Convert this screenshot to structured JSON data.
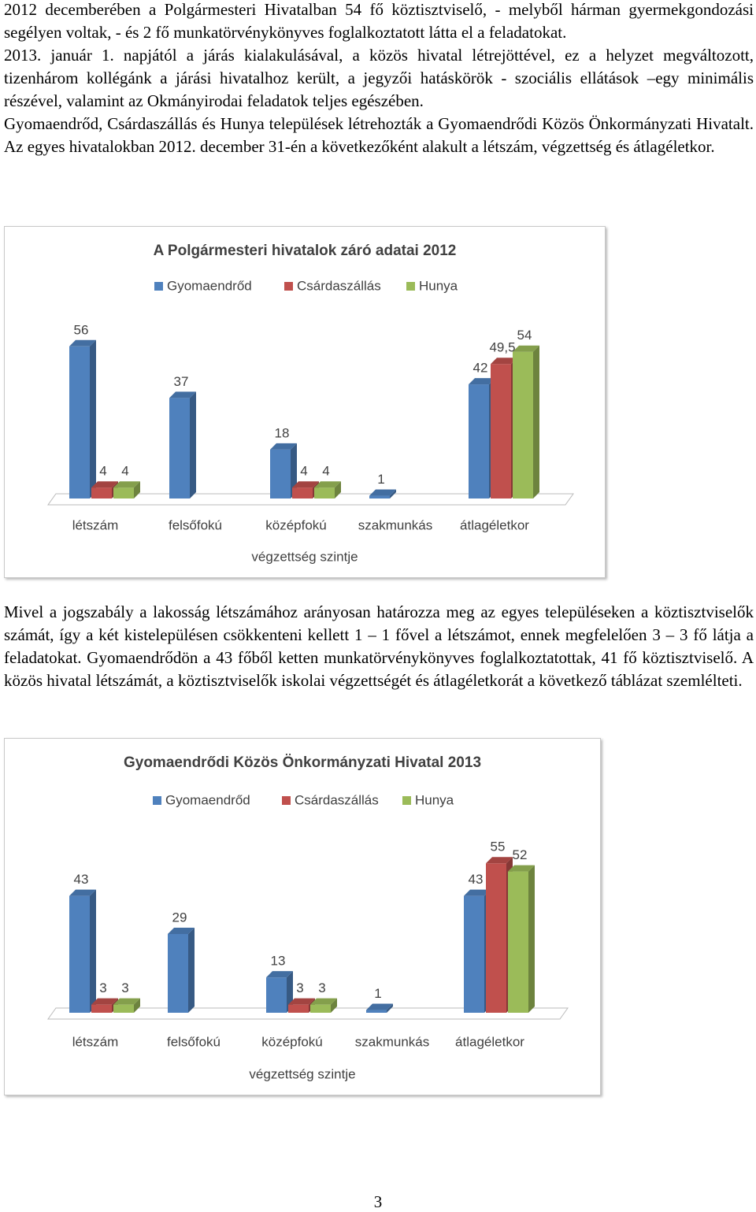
{
  "paragraphs": [
    "2012 decemberében a Polgármesteri Hivatalban 54 fő köztisztviselő, - melyből hárman gyermekgondozási segélyen voltak, - és 2 fő munkatörvénykönyves foglalkoztatott látta el a feladatokat.",
    "2013. január 1. napjától a járás kialakulásával, a közös hivatal létrejöttével, ez a helyzet megváltozott, tizenhárom kollégánk a járási hivatalhoz került, a jegyzői hatáskörök - szociális ellátások –egy minimális részével, valamint az Okmányirodai feladatok teljes egészében.",
    "Gyomaendrőd, Csárdaszállás és Hunya települések létrehozták a Gyomaendrődi Közös Önkormányzati Hivatalt. Az egyes hivatalokban 2012. december 31-én a következőként alakult a létszám, végzettség és átlagéletkor.",
    "Mivel a jogszabály a lakosság létszámához arányosan határozza meg az egyes településeken a köztisztviselők számát, így a két kistelepülésen csökkenteni kellett 1 – 1 fővel a létszámot, ennek megfelelően 3 – 3 fő látja a feladatokat. Gyomaendrődön a 43 főből ketten munkatörvénykönyves foglalkoztatottak, 41 fő köztisztviselő. A közös hivatal létszámát, a köztisztviselők iskolai végzettségét és átlagéletkorát a következő táblázat szemlélteti."
  ],
  "chart_data": [
    {
      "type": "bar",
      "title": "A Polgármesteri hivatalok záró adatai 2012",
      "x_label": "végzettség szintje",
      "categories": [
        "létszám",
        "felsőfokú",
        "középfokú",
        "szakmunkás",
        "átlagéletkor"
      ],
      "series": [
        {
          "name": "Gyomaendrőd",
          "color": "#4f81bd",
          "values": [
            56,
            37,
            18,
            1,
            42
          ]
        },
        {
          "name": "Csárdaszállás",
          "color": "#c0504d",
          "values": [
            4,
            null,
            4,
            null,
            49.5
          ],
          "value_labels": [
            "4",
            null,
            "4",
            null,
            "49,5"
          ]
        },
        {
          "name": "Hunya",
          "color": "#9bbb59",
          "values": [
            4,
            null,
            4,
            null,
            54
          ]
        }
      ],
      "legend": "top"
    },
    {
      "type": "bar",
      "title": "Gyomaendrődi Közös Önkormányzati Hivatal 2013",
      "x_label": "végzettség szintje",
      "categories": [
        "létszám",
        "felsőfokú",
        "középfokú",
        "szakmunkás",
        "átlagéletkor"
      ],
      "series": [
        {
          "name": "Gyomaendrőd",
          "color": "#4f81bd",
          "values": [
            43,
            29,
            13,
            1,
            43
          ]
        },
        {
          "name": "Csárdaszállás",
          "color": "#c0504d",
          "values": [
            3,
            null,
            3,
            null,
            55
          ]
        },
        {
          "name": "Hunya",
          "color": "#9bbb59",
          "values": [
            3,
            null,
            3,
            null,
            52
          ]
        }
      ],
      "legend": "top"
    }
  ],
  "page_number": "3"
}
